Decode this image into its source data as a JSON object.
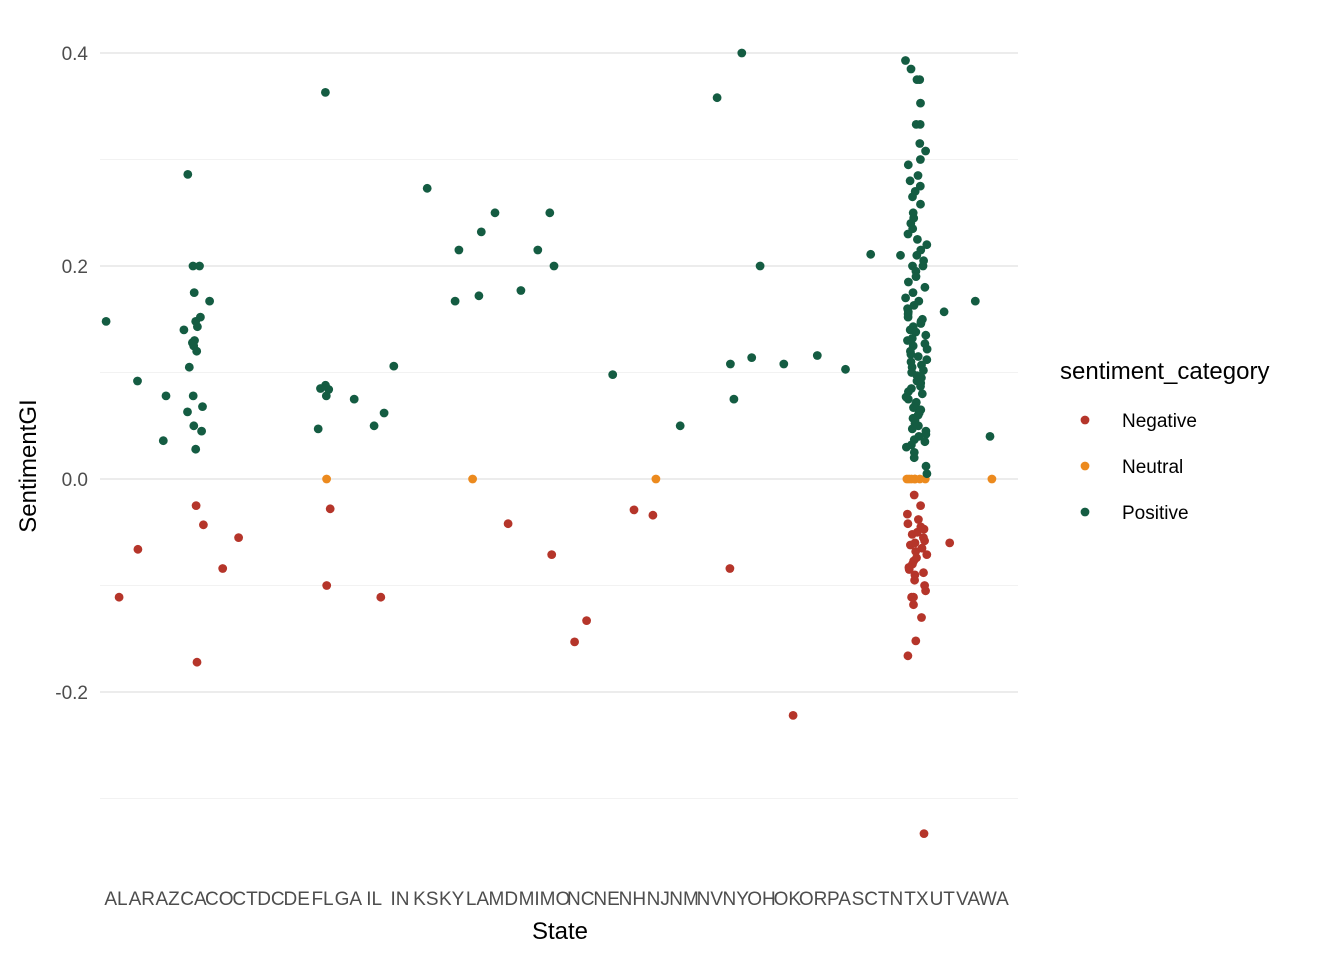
{
  "chart_data": {
    "type": "scatter",
    "xlabel": "State",
    "ylabel": "SentimentGI",
    "categories": [
      "AL",
      "AR",
      "AZ",
      "CA",
      "CO",
      "CT",
      "DC",
      "DE",
      "FL",
      "GA",
      "IL",
      "IN",
      "KS",
      "KY",
      "LA",
      "MD",
      "MI",
      "MO",
      "NC",
      "NE",
      "NH",
      "NJ",
      "NM",
      "NV",
      "NY",
      "OH",
      "OK",
      "OR",
      "PA",
      "SC",
      "TN",
      "TX",
      "UT",
      "VA",
      "WA"
    ],
    "ylim": [
      -0.35,
      0.42
    ],
    "y_ticks": [
      -0.2,
      0.0,
      0.2,
      0.4
    ],
    "y_tick_labels": [
      "-0.2",
      "0.0",
      "0.2",
      "0.4"
    ],
    "grid": true,
    "legend": {
      "title": "sentiment_category",
      "placement": "right",
      "entries": [
        {
          "name": "Negative",
          "color": "#b5352a"
        },
        {
          "name": "Neutral",
          "color": "#ec8a1e"
        },
        {
          "name": "Positive",
          "color": "#145c42"
        }
      ]
    },
    "series": [
      {
        "name": "Negative",
        "color": "#b5352a",
        "points": [
          [
            "AL",
            -0.111
          ],
          [
            "AR",
            -0.066
          ],
          [
            "CA",
            -0.025
          ],
          [
            "CA",
            -0.043
          ],
          [
            "CA",
            -0.172
          ],
          [
            "CO",
            -0.084
          ],
          [
            "CT",
            -0.055
          ],
          [
            "FL",
            -0.028
          ],
          [
            "FL",
            -0.1
          ],
          [
            "IL",
            -0.111
          ],
          [
            "MD",
            -0.042
          ],
          [
            "MO",
            -0.071
          ],
          [
            "NC",
            -0.133
          ],
          [
            "NC",
            -0.153
          ],
          [
            "NH",
            -0.029
          ],
          [
            "NJ",
            -0.034
          ],
          [
            "NY",
            -0.084
          ],
          [
            "OK",
            -0.222
          ],
          [
            "UT",
            -0.06
          ],
          [
            "TX",
            -0.333
          ],
          [
            "TX",
            -0.166
          ],
          [
            "TX",
            -0.152
          ],
          [
            "TX",
            -0.13
          ],
          [
            "TX",
            -0.118
          ],
          [
            "TX",
            -0.111
          ],
          [
            "TX",
            -0.111
          ],
          [
            "TX",
            -0.105
          ],
          [
            "TX",
            -0.1
          ],
          [
            "TX",
            -0.095
          ],
          [
            "TX",
            -0.09
          ],
          [
            "TX",
            -0.088
          ],
          [
            "TX",
            -0.085
          ],
          [
            "TX",
            -0.083
          ],
          [
            "TX",
            -0.08
          ],
          [
            "TX",
            -0.077
          ],
          [
            "TX",
            -0.074
          ],
          [
            "TX",
            -0.071
          ],
          [
            "TX",
            -0.068
          ],
          [
            "TX",
            -0.065
          ],
          [
            "TX",
            -0.062
          ],
          [
            "TX",
            -0.06
          ],
          [
            "TX",
            -0.058
          ],
          [
            "TX",
            -0.055
          ],
          [
            "TX",
            -0.052
          ],
          [
            "TX",
            -0.05
          ],
          [
            "TX",
            -0.047
          ],
          [
            "TX",
            -0.045
          ],
          [
            "TX",
            -0.042
          ],
          [
            "TX",
            -0.038
          ],
          [
            "TX",
            -0.033
          ],
          [
            "TX",
            -0.025
          ],
          [
            "TX",
            -0.015
          ]
        ]
      },
      {
        "name": "Neutral",
        "color": "#ec8a1e",
        "points": [
          [
            "FL",
            0.0
          ],
          [
            "LA",
            0.0
          ],
          [
            "NJ",
            0.0
          ],
          [
            "WA",
            0.0
          ],
          [
            "TX",
            0.0
          ],
          [
            "TX",
            0.0
          ],
          [
            "TX",
            0.0
          ],
          [
            "TX",
            0.0
          ],
          [
            "TX",
            0.0
          ],
          [
            "TX",
            0.0
          ],
          [
            "TX",
            0.0
          ]
        ]
      },
      {
        "name": "Positive",
        "color": "#145c42",
        "points": [
          [
            "AL",
            0.148
          ],
          [
            "AR",
            0.092
          ],
          [
            "AZ",
            0.036
          ],
          [
            "AZ",
            0.078
          ],
          [
            "CA",
            0.286
          ],
          [
            "CA",
            0.2
          ],
          [
            "CA",
            0.2
          ],
          [
            "CA",
            0.175
          ],
          [
            "CA",
            0.152
          ],
          [
            "CA",
            0.148
          ],
          [
            "CA",
            0.143
          ],
          [
            "CA",
            0.14
          ],
          [
            "CA",
            0.13
          ],
          [
            "CA",
            0.128
          ],
          [
            "CA",
            0.125
          ],
          [
            "CA",
            0.12
          ],
          [
            "CA",
            0.105
          ],
          [
            "CA",
            0.078
          ],
          [
            "CA",
            0.068
          ],
          [
            "CA",
            0.063
          ],
          [
            "CA",
            0.05
          ],
          [
            "CA",
            0.045
          ],
          [
            "CA",
            0.028
          ],
          [
            "CO",
            0.167
          ],
          [
            "FL",
            0.363
          ],
          [
            "FL",
            0.088
          ],
          [
            "FL",
            0.085
          ],
          [
            "FL",
            0.084
          ],
          [
            "FL",
            0.078
          ],
          [
            "FL",
            0.047
          ],
          [
            "GA",
            0.075
          ],
          [
            "IL",
            0.062
          ],
          [
            "IL",
            0.05
          ],
          [
            "IN",
            0.106
          ],
          [
            "KS",
            0.273
          ],
          [
            "KY",
            0.167
          ],
          [
            "KY",
            0.215
          ],
          [
            "LA",
            0.172
          ],
          [
            "LA",
            0.232
          ],
          [
            "MD",
            0.25
          ],
          [
            "MI",
            0.215
          ],
          [
            "MI",
            0.177
          ],
          [
            "MO",
            0.25
          ],
          [
            "MO",
            0.2
          ],
          [
            "NE",
            0.098
          ],
          [
            "NM",
            0.05
          ],
          [
            "NV",
            0.358
          ],
          [
            "NY",
            0.108
          ],
          [
            "NY",
            0.4
          ],
          [
            "NY",
            0.075
          ],
          [
            "OH",
            0.2
          ],
          [
            "OH",
            0.114
          ],
          [
            "OK",
            0.108
          ],
          [
            "OR",
            0.116
          ],
          [
            "PA",
            0.103
          ],
          [
            "SC",
            0.211
          ],
          [
            "TN",
            0.21
          ],
          [
            "UT",
            0.157
          ],
          [
            "VA",
            0.167
          ],
          [
            "WA",
            0.04
          ],
          [
            "TX",
            0.393
          ],
          [
            "TX",
            0.385
          ],
          [
            "TX",
            0.375
          ],
          [
            "TX",
            0.375
          ],
          [
            "TX",
            0.353
          ],
          [
            "TX",
            0.333
          ],
          [
            "TX",
            0.333
          ],
          [
            "TX",
            0.315
          ],
          [
            "TX",
            0.308
          ],
          [
            "TX",
            0.3
          ],
          [
            "TX",
            0.295
          ],
          [
            "TX",
            0.285
          ],
          [
            "TX",
            0.28
          ],
          [
            "TX",
            0.275
          ],
          [
            "TX",
            0.27
          ],
          [
            "TX",
            0.265
          ],
          [
            "TX",
            0.258
          ],
          [
            "TX",
            0.25
          ],
          [
            "TX",
            0.245
          ],
          [
            "TX",
            0.24
          ],
          [
            "TX",
            0.235
          ],
          [
            "TX",
            0.23
          ],
          [
            "TX",
            0.225
          ],
          [
            "TX",
            0.22
          ],
          [
            "TX",
            0.215
          ],
          [
            "TX",
            0.21
          ],
          [
            "TX",
            0.205
          ],
          [
            "TX",
            0.2
          ],
          [
            "TX",
            0.2
          ],
          [
            "TX",
            0.195
          ],
          [
            "TX",
            0.19
          ],
          [
            "TX",
            0.185
          ],
          [
            "TX",
            0.18
          ],
          [
            "TX",
            0.175
          ],
          [
            "TX",
            0.17
          ],
          [
            "TX",
            0.167
          ],
          [
            "TX",
            0.163
          ],
          [
            "TX",
            0.16
          ],
          [
            "TX",
            0.157
          ],
          [
            "TX",
            0.155
          ],
          [
            "TX",
            0.152
          ],
          [
            "TX",
            0.15
          ],
          [
            "TX",
            0.148
          ],
          [
            "TX",
            0.146
          ],
          [
            "TX",
            0.143
          ],
          [
            "TX",
            0.14
          ],
          [
            "TX",
            0.138
          ],
          [
            "TX",
            0.135
          ],
          [
            "TX",
            0.132
          ],
          [
            "TX",
            0.13
          ],
          [
            "TX",
            0.127
          ],
          [
            "TX",
            0.125
          ],
          [
            "TX",
            0.122
          ],
          [
            "TX",
            0.12
          ],
          [
            "TX",
            0.117
          ],
          [
            "TX",
            0.115
          ],
          [
            "TX",
            0.112
          ],
          [
            "TX",
            0.11
          ],
          [
            "TX",
            0.107
          ],
          [
            "TX",
            0.105
          ],
          [
            "TX",
            0.102
          ],
          [
            "TX",
            0.1
          ],
          [
            "TX",
            0.097
          ],
          [
            "TX",
            0.095
          ],
          [
            "TX",
            0.092
          ],
          [
            "TX",
            0.09
          ],
          [
            "TX",
            0.087
          ],
          [
            "TX",
            0.085
          ],
          [
            "TX",
            0.082
          ],
          [
            "TX",
            0.08
          ],
          [
            "TX",
            0.077
          ],
          [
            "TX",
            0.075
          ],
          [
            "TX",
            0.072
          ],
          [
            "TX",
            0.07
          ],
          [
            "TX",
            0.067
          ],
          [
            "TX",
            0.065
          ],
          [
            "TX",
            0.062
          ],
          [
            "TX",
            0.06
          ],
          [
            "TX",
            0.057
          ],
          [
            "TX",
            0.055
          ],
          [
            "TX",
            0.052
          ],
          [
            "TX",
            0.05
          ],
          [
            "TX",
            0.047
          ],
          [
            "TX",
            0.045
          ],
          [
            "TX",
            0.042
          ],
          [
            "TX",
            0.04
          ],
          [
            "TX",
            0.037
          ],
          [
            "TX",
            0.035
          ],
          [
            "TX",
            0.032
          ],
          [
            "TX",
            0.03
          ],
          [
            "TX",
            0.025
          ],
          [
            "TX",
            0.02
          ],
          [
            "TX",
            0.012
          ],
          [
            "TX",
            0.005
          ]
        ]
      }
    ]
  }
}
